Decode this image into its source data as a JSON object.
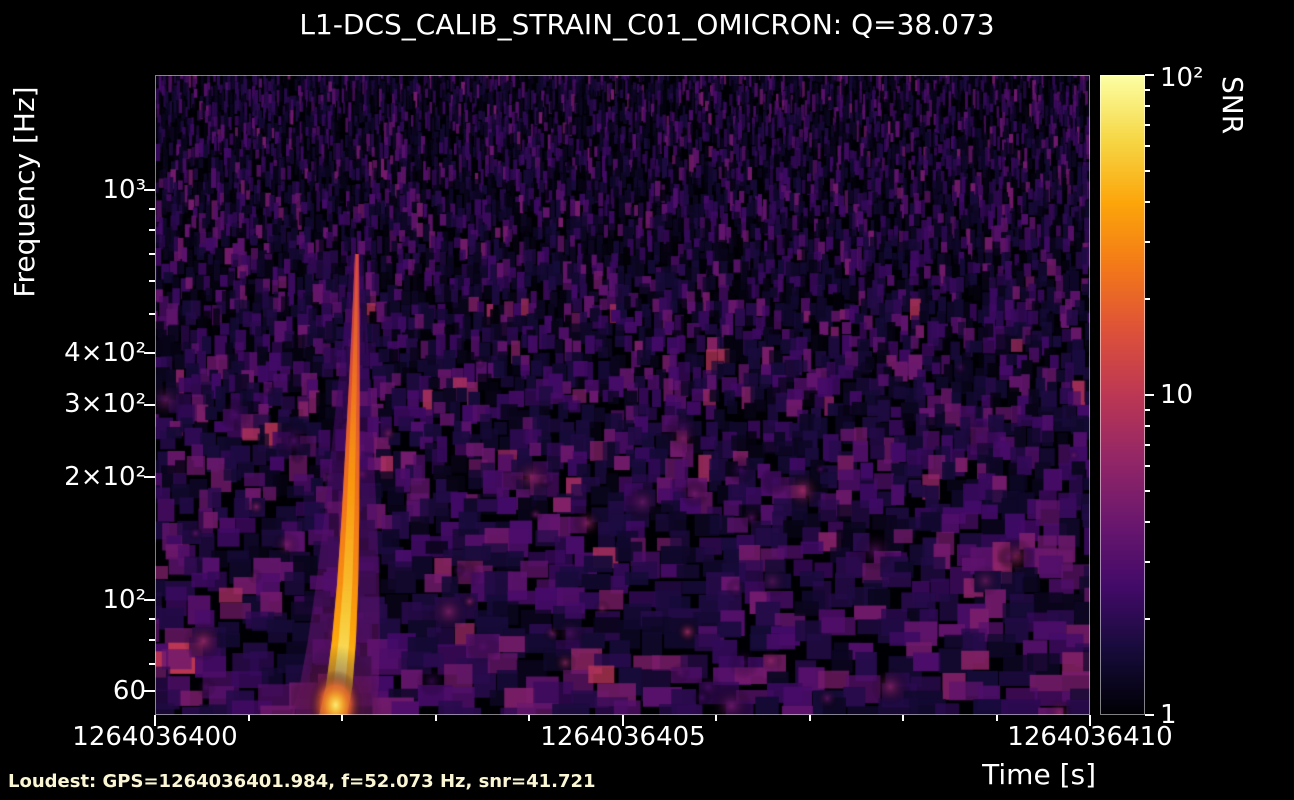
{
  "chart_data": {
    "type": "heatmap",
    "subtype": "omega_scan_q_spectrogram",
    "title": "L1-DCS_CALIB_STRAIN_C01_OMICRON: Q=38.073",
    "channel": "L1-DCS_CALIB_STRAIN_C01_OMICRON",
    "q_value": 38.073,
    "xlabel": "Time [s]",
    "ylabel": "Frequency [Hz]",
    "colormap": "inferno",
    "grid": false,
    "colorbar": {
      "label": "SNR",
      "scale": "log",
      "range": [
        1,
        100
      ],
      "ticks": [
        {
          "value": 100,
          "label": "10²"
        },
        {
          "value": 10,
          "label": "10"
        },
        {
          "value": 1,
          "label": "1"
        }
      ]
    },
    "x_axis": {
      "scale": "linear",
      "range": [
        1264036400,
        1264036410
      ],
      "ticks": [
        {
          "value": 1264036400,
          "label": "1264036400"
        },
        {
          "value": 1264036405,
          "label": "1264036405"
        },
        {
          "value": 1264036410,
          "label": "1264036410"
        }
      ]
    },
    "y_axis": {
      "scale": "log",
      "range": [
        52,
        1910
      ],
      "ticks": [
        {
          "value": 1000,
          "label": "10³"
        },
        {
          "value": 400,
          "label": "4×10²"
        },
        {
          "value": 300,
          "label": "3×10²"
        },
        {
          "value": 200,
          "label": "2×10²"
        },
        {
          "value": 100,
          "label": "10²"
        },
        {
          "value": 60,
          "label": "60"
        }
      ],
      "minor_ticks": [
        70,
        80,
        90,
        500,
        600,
        700,
        800,
        900
      ]
    },
    "annotation": "Loudest: GPS=1264036401.984, f=52.073 Hz, snr=41.721",
    "loudest": {
      "gps": 1264036401.984,
      "frequency_hz": 52.073,
      "snr": 41.721
    },
    "chirp_track": [
      {
        "time": 1264036401.9,
        "frequency_hz": 52,
        "snr": 42
      },
      {
        "time": 1264036401.97,
        "frequency_hz": 62,
        "snr": 36
      },
      {
        "time": 1264036402.02,
        "frequency_hz": 80,
        "snr": 26
      },
      {
        "time": 1264036402.06,
        "frequency_hz": 110,
        "snr": 20
      },
      {
        "time": 1264036402.09,
        "frequency_hz": 160,
        "snr": 16
      },
      {
        "time": 1264036402.11,
        "frequency_hz": 230,
        "snr": 13
      },
      {
        "time": 1264036402.13,
        "frequency_hz": 330,
        "snr": 10
      },
      {
        "time": 1264036402.145,
        "frequency_hz": 460,
        "snr": 8
      },
      {
        "time": 1264036402.16,
        "frequency_hz": 700,
        "snr": 6
      }
    ],
    "background_noise": {
      "typical_snr_range": [
        1,
        8
      ]
    }
  },
  "colors": {
    "background": "#000000",
    "foreground": "#ffffff",
    "annotation_text": "#fbf7d5"
  }
}
